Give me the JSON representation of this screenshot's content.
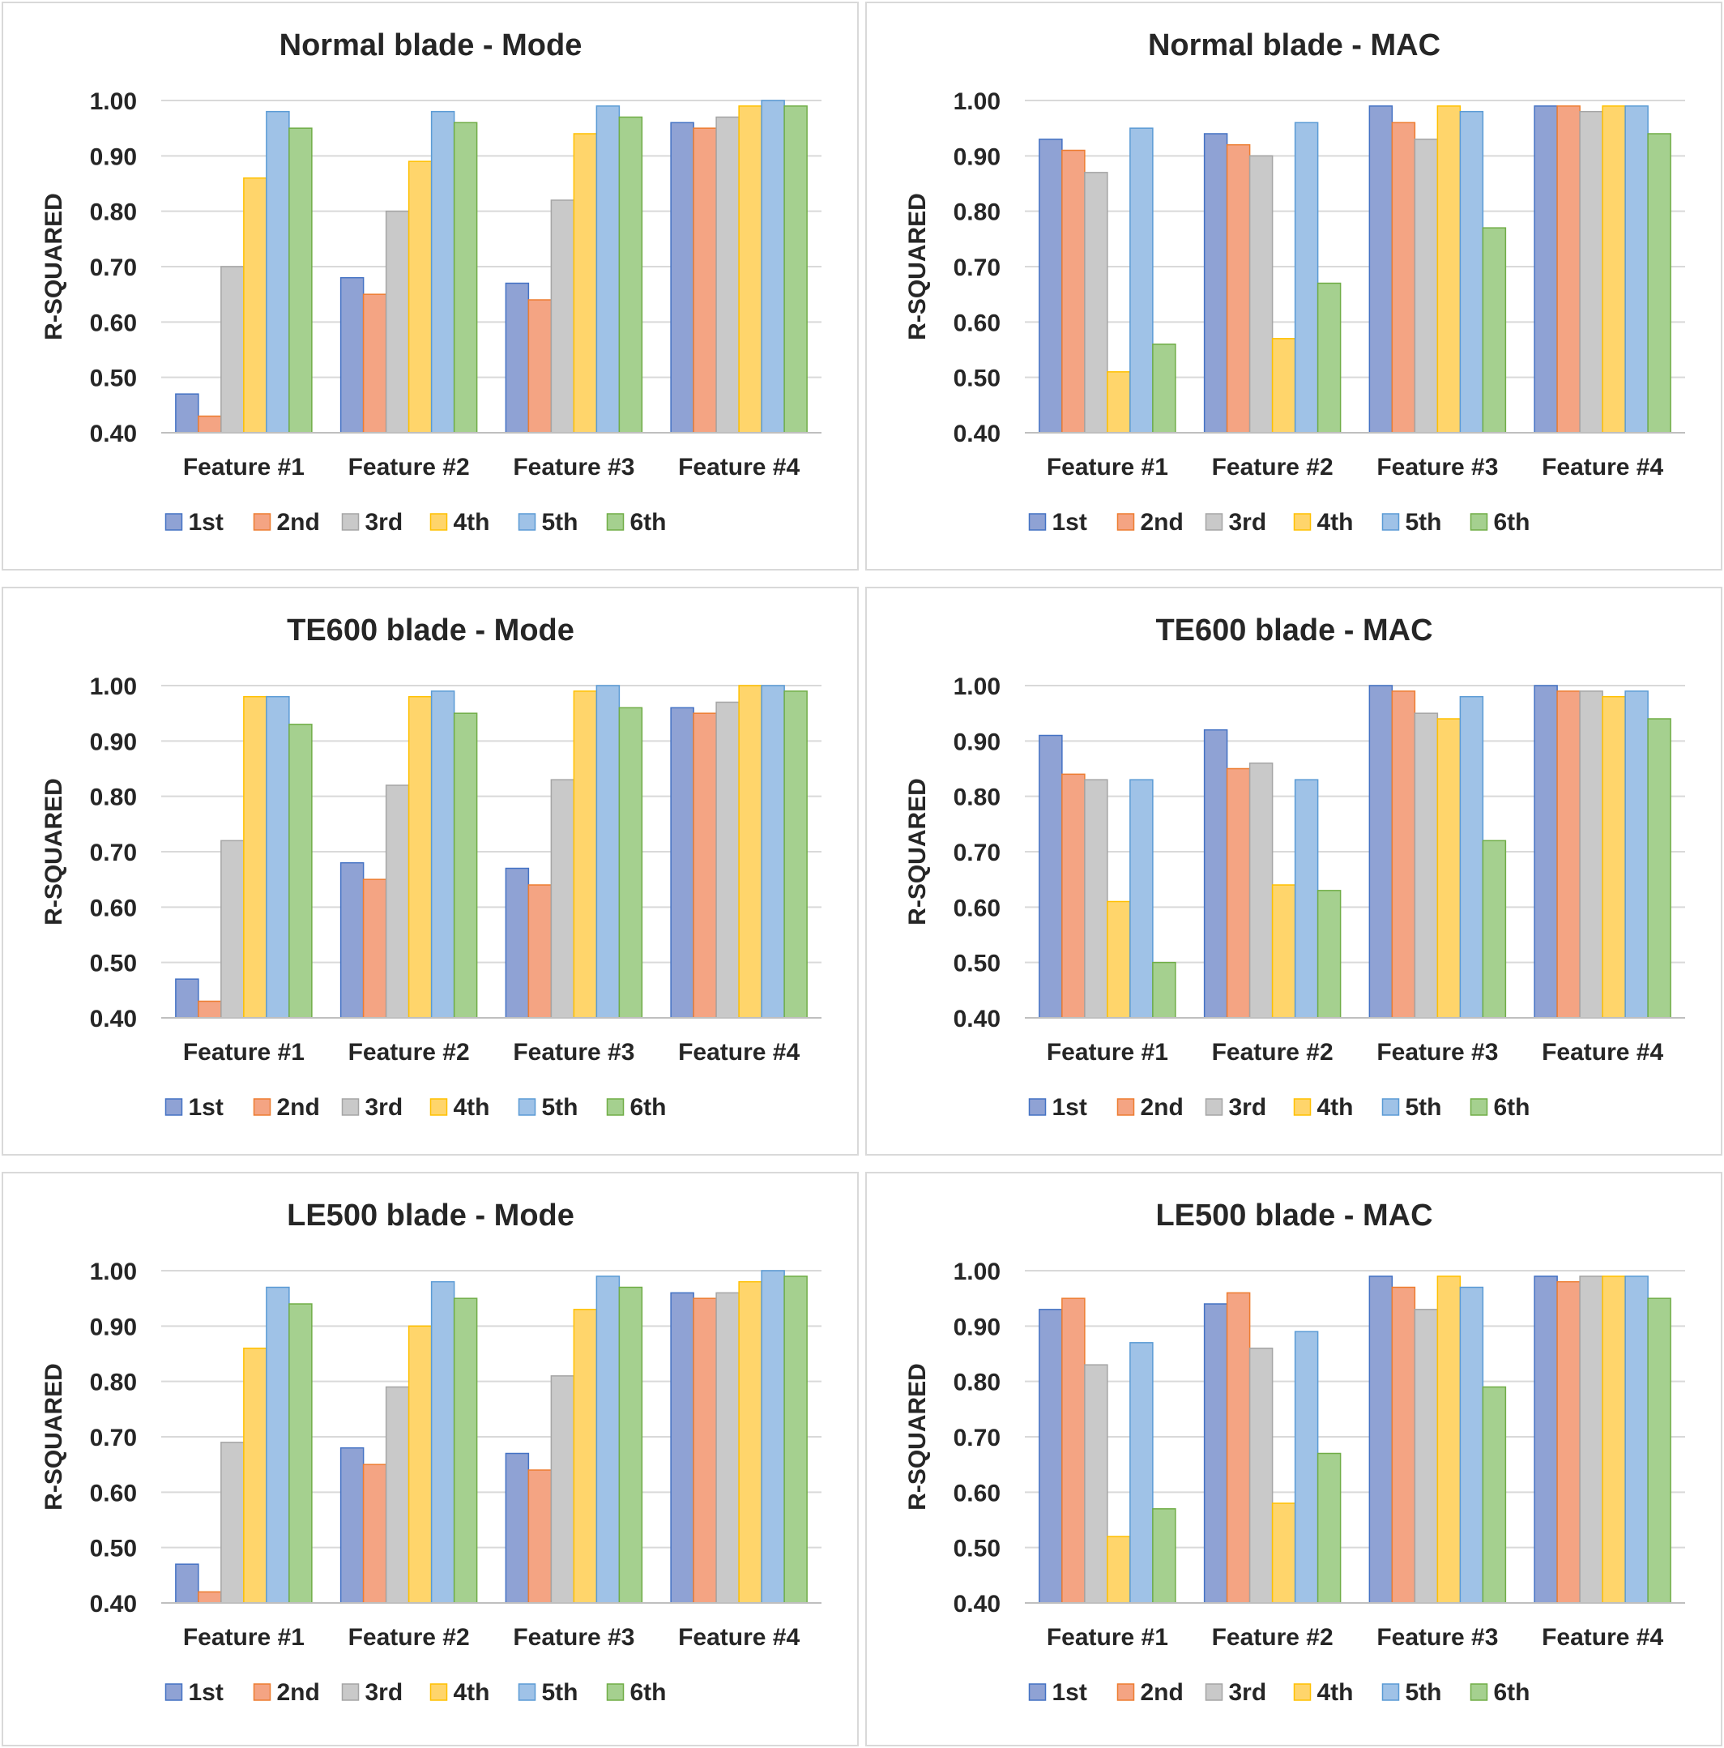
{
  "legend_colors": {
    "1st": "#8fa2d4",
    "2nd": "#f4a483",
    "3rd": "#c9c9c9",
    "4th": "#ffd56b",
    "5th": "#9fc2e7",
    "6th": "#a5d08f"
  },
  "legend_stroke": {
    "1st": "#4472c4",
    "2nd": "#ed7d31",
    "3rd": "#a5a5a5",
    "4th": "#ffc000",
    "5th": "#5b9bd5",
    "6th": "#70ad47"
  },
  "chart_data": [
    {
      "type": "bar",
      "title": "Normal blade - Mode",
      "ylabel": "R-SQUARED",
      "xlabel": "",
      "ylim": [
        0.4,
        1.0
      ],
      "yticks": [
        "0.40",
        "0.50",
        "0.60",
        "0.70",
        "0.80",
        "0.90",
        "1.00"
      ],
      "categories": [
        "Feature #1",
        "Feature #2",
        "Feature #3",
        "Feature #4"
      ],
      "legend": "bottom",
      "grid": true,
      "series": [
        {
          "name": "1st",
          "values": [
            0.47,
            0.68,
            0.67,
            0.96
          ]
        },
        {
          "name": "2nd",
          "values": [
            0.43,
            0.65,
            0.64,
            0.95
          ]
        },
        {
          "name": "3rd",
          "values": [
            0.7,
            0.8,
            0.82,
            0.97
          ]
        },
        {
          "name": "4th",
          "values": [
            0.86,
            0.89,
            0.94,
            0.99
          ]
        },
        {
          "name": "5th",
          "values": [
            0.98,
            0.98,
            0.99,
            1.0
          ]
        },
        {
          "name": "6th",
          "values": [
            0.95,
            0.96,
            0.97,
            0.99
          ]
        }
      ]
    },
    {
      "type": "bar",
      "title": "Normal blade - MAC",
      "ylabel": "R-SQUARED",
      "xlabel": "",
      "ylim": [
        0.4,
        1.0
      ],
      "yticks": [
        "0.40",
        "0.50",
        "0.60",
        "0.70",
        "0.80",
        "0.90",
        "1.00"
      ],
      "categories": [
        "Feature #1",
        "Feature #2",
        "Feature #3",
        "Feature #4"
      ],
      "legend": "bottom",
      "grid": true,
      "series": [
        {
          "name": "1st",
          "values": [
            0.93,
            0.94,
            0.99,
            0.99
          ]
        },
        {
          "name": "2nd",
          "values": [
            0.91,
            0.92,
            0.96,
            0.99
          ]
        },
        {
          "name": "3rd",
          "values": [
            0.87,
            0.9,
            0.93,
            0.98
          ]
        },
        {
          "name": "4th",
          "values": [
            0.51,
            0.57,
            0.99,
            0.99
          ]
        },
        {
          "name": "5th",
          "values": [
            0.95,
            0.96,
            0.98,
            0.99
          ]
        },
        {
          "name": "6th",
          "values": [
            0.56,
            0.67,
            0.77,
            0.94
          ]
        }
      ]
    },
    {
      "type": "bar",
      "title": "TE600 blade - Mode",
      "ylabel": "R-SQUARED",
      "xlabel": "",
      "ylim": [
        0.4,
        1.0
      ],
      "yticks": [
        "0.40",
        "0.50",
        "0.60",
        "0.70",
        "0.80",
        "0.90",
        "1.00"
      ],
      "categories": [
        "Feature #1",
        "Feature #2",
        "Feature #3",
        "Feature #4"
      ],
      "legend": "bottom",
      "grid": true,
      "series": [
        {
          "name": "1st",
          "values": [
            0.47,
            0.68,
            0.67,
            0.96
          ]
        },
        {
          "name": "2nd",
          "values": [
            0.43,
            0.65,
            0.64,
            0.95
          ]
        },
        {
          "name": "3rd",
          "values": [
            0.72,
            0.82,
            0.83,
            0.97
          ]
        },
        {
          "name": "4th",
          "values": [
            0.98,
            0.98,
            0.99,
            1.0
          ]
        },
        {
          "name": "5th",
          "values": [
            0.98,
            0.99,
            1.0,
            1.0
          ]
        },
        {
          "name": "6th",
          "values": [
            0.93,
            0.95,
            0.96,
            0.99
          ]
        }
      ]
    },
    {
      "type": "bar",
      "title": "TE600 blade - MAC",
      "ylabel": "R-SQUARED",
      "xlabel": "",
      "ylim": [
        0.4,
        1.0
      ],
      "yticks": [
        "0.40",
        "0.50",
        "0.60",
        "0.70",
        "0.80",
        "0.90",
        "1.00"
      ],
      "categories": [
        "Feature #1",
        "Feature #2",
        "Feature #3",
        "Feature #4"
      ],
      "legend": "bottom",
      "grid": true,
      "series": [
        {
          "name": "1st",
          "values": [
            0.91,
            0.92,
            1.0,
            1.0
          ]
        },
        {
          "name": "2nd",
          "values": [
            0.84,
            0.85,
            0.99,
            0.99
          ]
        },
        {
          "name": "3rd",
          "values": [
            0.83,
            0.86,
            0.95,
            0.99
          ]
        },
        {
          "name": "4th",
          "values": [
            0.61,
            0.64,
            0.94,
            0.98
          ]
        },
        {
          "name": "5th",
          "values": [
            0.83,
            0.83,
            0.98,
            0.99
          ]
        },
        {
          "name": "6th",
          "values": [
            0.5,
            0.63,
            0.72,
            0.94
          ]
        }
      ]
    },
    {
      "type": "bar",
      "title": "LE500 blade - Mode",
      "ylabel": "R-SQUARED",
      "xlabel": "",
      "ylim": [
        0.4,
        1.0
      ],
      "yticks": [
        "0.40",
        "0.50",
        "0.60",
        "0.70",
        "0.80",
        "0.90",
        "1.00"
      ],
      "categories": [
        "Feature #1",
        "Feature #2",
        "Feature #3",
        "Feature #4"
      ],
      "legend": "bottom",
      "grid": true,
      "series": [
        {
          "name": "1st",
          "values": [
            0.47,
            0.68,
            0.67,
            0.96
          ]
        },
        {
          "name": "2nd",
          "values": [
            0.42,
            0.65,
            0.64,
            0.95
          ]
        },
        {
          "name": "3rd",
          "values": [
            0.69,
            0.79,
            0.81,
            0.96
          ]
        },
        {
          "name": "4th",
          "values": [
            0.86,
            0.9,
            0.93,
            0.98
          ]
        },
        {
          "name": "5th",
          "values": [
            0.97,
            0.98,
            0.99,
            1.0
          ]
        },
        {
          "name": "6th",
          "values": [
            0.94,
            0.95,
            0.97,
            0.99
          ]
        }
      ]
    },
    {
      "type": "bar",
      "title": "LE500 blade - MAC",
      "ylabel": "R-SQUARED",
      "xlabel": "",
      "ylim": [
        0.4,
        1.0
      ],
      "yticks": [
        "0.40",
        "0.50",
        "0.60",
        "0.70",
        "0.80",
        "0.90",
        "1.00"
      ],
      "categories": [
        "Feature #1",
        "Feature #2",
        "Feature #3",
        "Feature #4"
      ],
      "legend": "bottom",
      "grid": true,
      "series": [
        {
          "name": "1st",
          "values": [
            0.93,
            0.94,
            0.99,
            0.99
          ]
        },
        {
          "name": "2nd",
          "values": [
            0.95,
            0.96,
            0.97,
            0.98
          ]
        },
        {
          "name": "3rd",
          "values": [
            0.83,
            0.86,
            0.93,
            0.99
          ]
        },
        {
          "name": "4th",
          "values": [
            0.52,
            0.58,
            0.99,
            0.99
          ]
        },
        {
          "name": "5th",
          "values": [
            0.87,
            0.89,
            0.97,
            0.99
          ]
        },
        {
          "name": "6th",
          "values": [
            0.57,
            0.67,
            0.79,
            0.95
          ]
        }
      ]
    }
  ]
}
